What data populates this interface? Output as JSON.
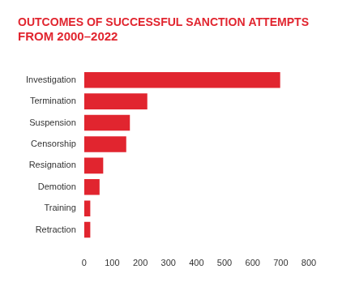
{
  "chart_data": {
    "type": "bar",
    "orientation": "horizontal",
    "title": [
      "OUTCOMES OF SUCCESSFUL SANCTION ATTEMPTS",
      "FROM 2000–2022"
    ],
    "categories": [
      "Investigation",
      "Termination",
      "Suspension",
      "Censorship",
      "Resignation",
      "Demotion",
      "Training",
      "Retraction"
    ],
    "values": [
      698,
      225,
      163,
      150,
      68,
      55,
      22,
      22
    ],
    "color": "#e1252f",
    "xlim": [
      0,
      800
    ],
    "xticks": [
      0,
      100,
      200,
      300,
      400,
      500,
      600,
      700,
      800
    ],
    "grid": false
  }
}
